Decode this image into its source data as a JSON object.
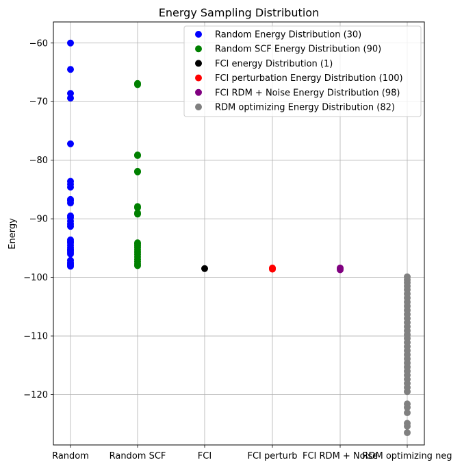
{
  "chart_data": {
    "type": "scatter",
    "title": "Energy Sampling Distribution",
    "xlabel": "",
    "ylabel": "Energy",
    "ylim": [
      -128.6,
      -56.4
    ],
    "grid": true,
    "legend_position": "top-right",
    "categories": [
      "Random",
      "Random SCF",
      "FCI",
      "FCI perturb",
      "FCI RDM + Noise",
      "RDM optimizing neg"
    ],
    "yticks": [
      -60,
      -70,
      -80,
      -90,
      -100,
      -110,
      -120
    ],
    "series": [
      {
        "name": "Random Energy Distribution (30)",
        "color": "#0000ff",
        "category": "Random",
        "values": [
          -60.0,
          -64.5,
          -68.6,
          -69.4,
          -77.2,
          -83.6,
          -84.1,
          -84.6,
          -86.9,
          -87.3,
          -89.5,
          -90.4,
          -90.9,
          -91.3,
          -93.6,
          -94.1,
          -94.5,
          -94.9,
          -95.4,
          -95.7,
          -96.0,
          -97.1,
          -97.5,
          -97.9,
          -98.1,
          -89.8,
          -86.7,
          -95.2,
          -93.9,
          -97.7
        ]
      },
      {
        "name": "Random SCF Energy Distribution (90)",
        "color": "#008000",
        "category": "Random SCF",
        "values": [
          -66.9,
          -67.1,
          -79.1,
          -79.2,
          -81.9,
          -82.0,
          -87.9,
          -88.1,
          -89.0,
          -89.2,
          -94.1,
          -94.3,
          -94.6,
          -94.9,
          -95.3,
          -95.7,
          -96.1,
          -96.5,
          -96.9,
          -97.3,
          -97.7,
          -98.0
        ]
      },
      {
        "name": "FCI energy Distribution (1)",
        "color": "#000000",
        "category": "FCI",
        "values": [
          -98.5
        ]
      },
      {
        "name": "FCI perturbation Energy Distribution (100)",
        "color": "#ff0000",
        "category": "FCI perturb",
        "values": [
          -98.4,
          -98.5,
          -98.6
        ]
      },
      {
        "name": "FCI RDM + Noise Energy Distribution (98)",
        "color": "#800080",
        "category": "FCI RDM + Noise",
        "values": [
          -98.4,
          -98.5,
          -98.7
        ]
      },
      {
        "name": "RDM optimizing Energy Distribution (82)",
        "color": "#808080",
        "category": "RDM optimizing neg",
        "values": [
          -99.9,
          -100.4,
          -100.9,
          -101.5,
          -102.1,
          -102.8,
          -103.5,
          -104.2,
          -104.9,
          -105.6,
          -106.3,
          -107.0,
          -107.7,
          -108.4,
          -109.1,
          -109.8,
          -110.4,
          -111.1,
          -111.8,
          -112.5,
          -113.2,
          -113.9,
          -114.6,
          -115.3,
          -116.0,
          -116.7,
          -117.4,
          -118.1,
          -118.8,
          -119.5,
          -121.6,
          -122.2,
          -123.1,
          -124.9,
          -125.4,
          -126.5
        ]
      }
    ]
  }
}
